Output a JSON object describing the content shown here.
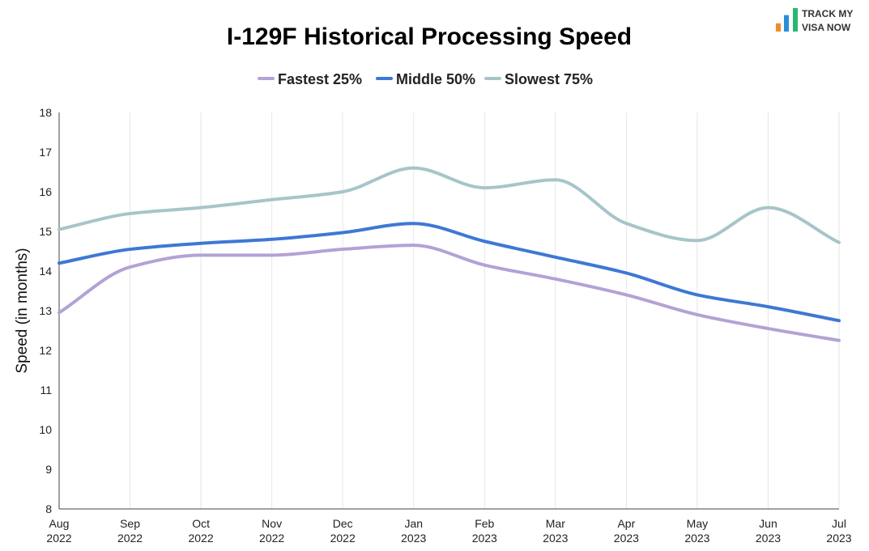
{
  "logo": {
    "line1": "TRACK MY",
    "line2": "VISA NOW",
    "bar_colors": [
      "#f28c28",
      "#2b8fd6",
      "#2bb673"
    ],
    "bar_levels": [
      0.35,
      0.7,
      1.0
    ]
  },
  "chart_data": {
    "type": "line",
    "title": "I-129F Historical Processing Speed",
    "xlabel": "",
    "ylabel": "Speed (in months)",
    "ylim": [
      8,
      18
    ],
    "yticks": [
      8,
      9,
      10,
      11,
      12,
      13,
      14,
      15,
      16,
      17,
      18
    ],
    "grid": {
      "vertical": true,
      "horizontal": false
    },
    "legend_position": "top-center",
    "x_ticks": [
      {
        "month": "Aug",
        "year": "2022"
      },
      {
        "month": "Sep",
        "year": "2022"
      },
      {
        "month": "Oct",
        "year": "2022"
      },
      {
        "month": "Nov",
        "year": "2022"
      },
      {
        "month": "Dec",
        "year": "2022"
      },
      {
        "month": "Jan",
        "year": "2023"
      },
      {
        "month": "Feb",
        "year": "2023"
      },
      {
        "month": "Mar",
        "year": "2023"
      },
      {
        "month": "Apr",
        "year": "2023"
      },
      {
        "month": "May",
        "year": "2023"
      },
      {
        "month": "Jun",
        "year": "2023"
      },
      {
        "month": "Jul",
        "year": "2023"
      }
    ],
    "series": [
      {
        "name": "Fastest 25%",
        "color": "#b3a2d5",
        "values": [
          12.95,
          14.1,
          14.4,
          14.4,
          14.55,
          14.65,
          14.15,
          13.8,
          13.4,
          12.9,
          12.55,
          12.25
        ]
      },
      {
        "name": "Middle 50%",
        "color": "#3d78d4",
        "values": [
          14.2,
          14.55,
          14.7,
          14.8,
          14.97,
          15.2,
          14.75,
          14.35,
          13.95,
          13.4,
          13.1,
          12.75
        ]
      },
      {
        "name": "Slowest 75%",
        "color": "#a7c5c9",
        "values": [
          15.05,
          15.45,
          15.6,
          15.8,
          16.0,
          16.6,
          16.1,
          16.3,
          15.2,
          14.77,
          15.6,
          14.72
        ]
      }
    ]
  }
}
